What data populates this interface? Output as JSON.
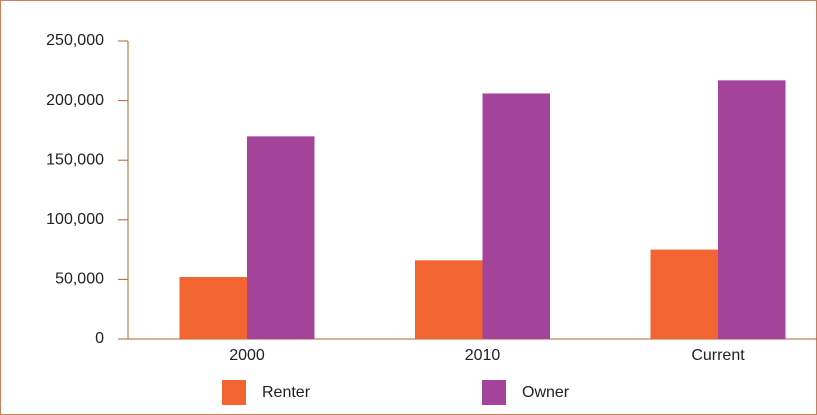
{
  "chart_data": {
    "type": "bar",
    "categories": [
      "2000",
      "2010",
      "Current"
    ],
    "series": [
      {
        "name": "Renter",
        "color": "#f26531",
        "values": [
          52000,
          66000,
          75000
        ]
      },
      {
        "name": "Owner",
        "color": "#a3449a",
        "values": [
          170000,
          206000,
          217000
        ]
      }
    ],
    "ylim": [
      0,
      250000
    ],
    "yticks": [
      0,
      {
        "value": 50000,
        "label": "50,000"
      },
      {
        "value": 100000,
        "label": "100,000"
      },
      {
        "value": 150000,
        "label": "150,000"
      },
      {
        "value": 200000,
        "label": "200,000"
      },
      {
        "value": 250000,
        "label": "250,000"
      }
    ],
    "legend": "bottom"
  }
}
